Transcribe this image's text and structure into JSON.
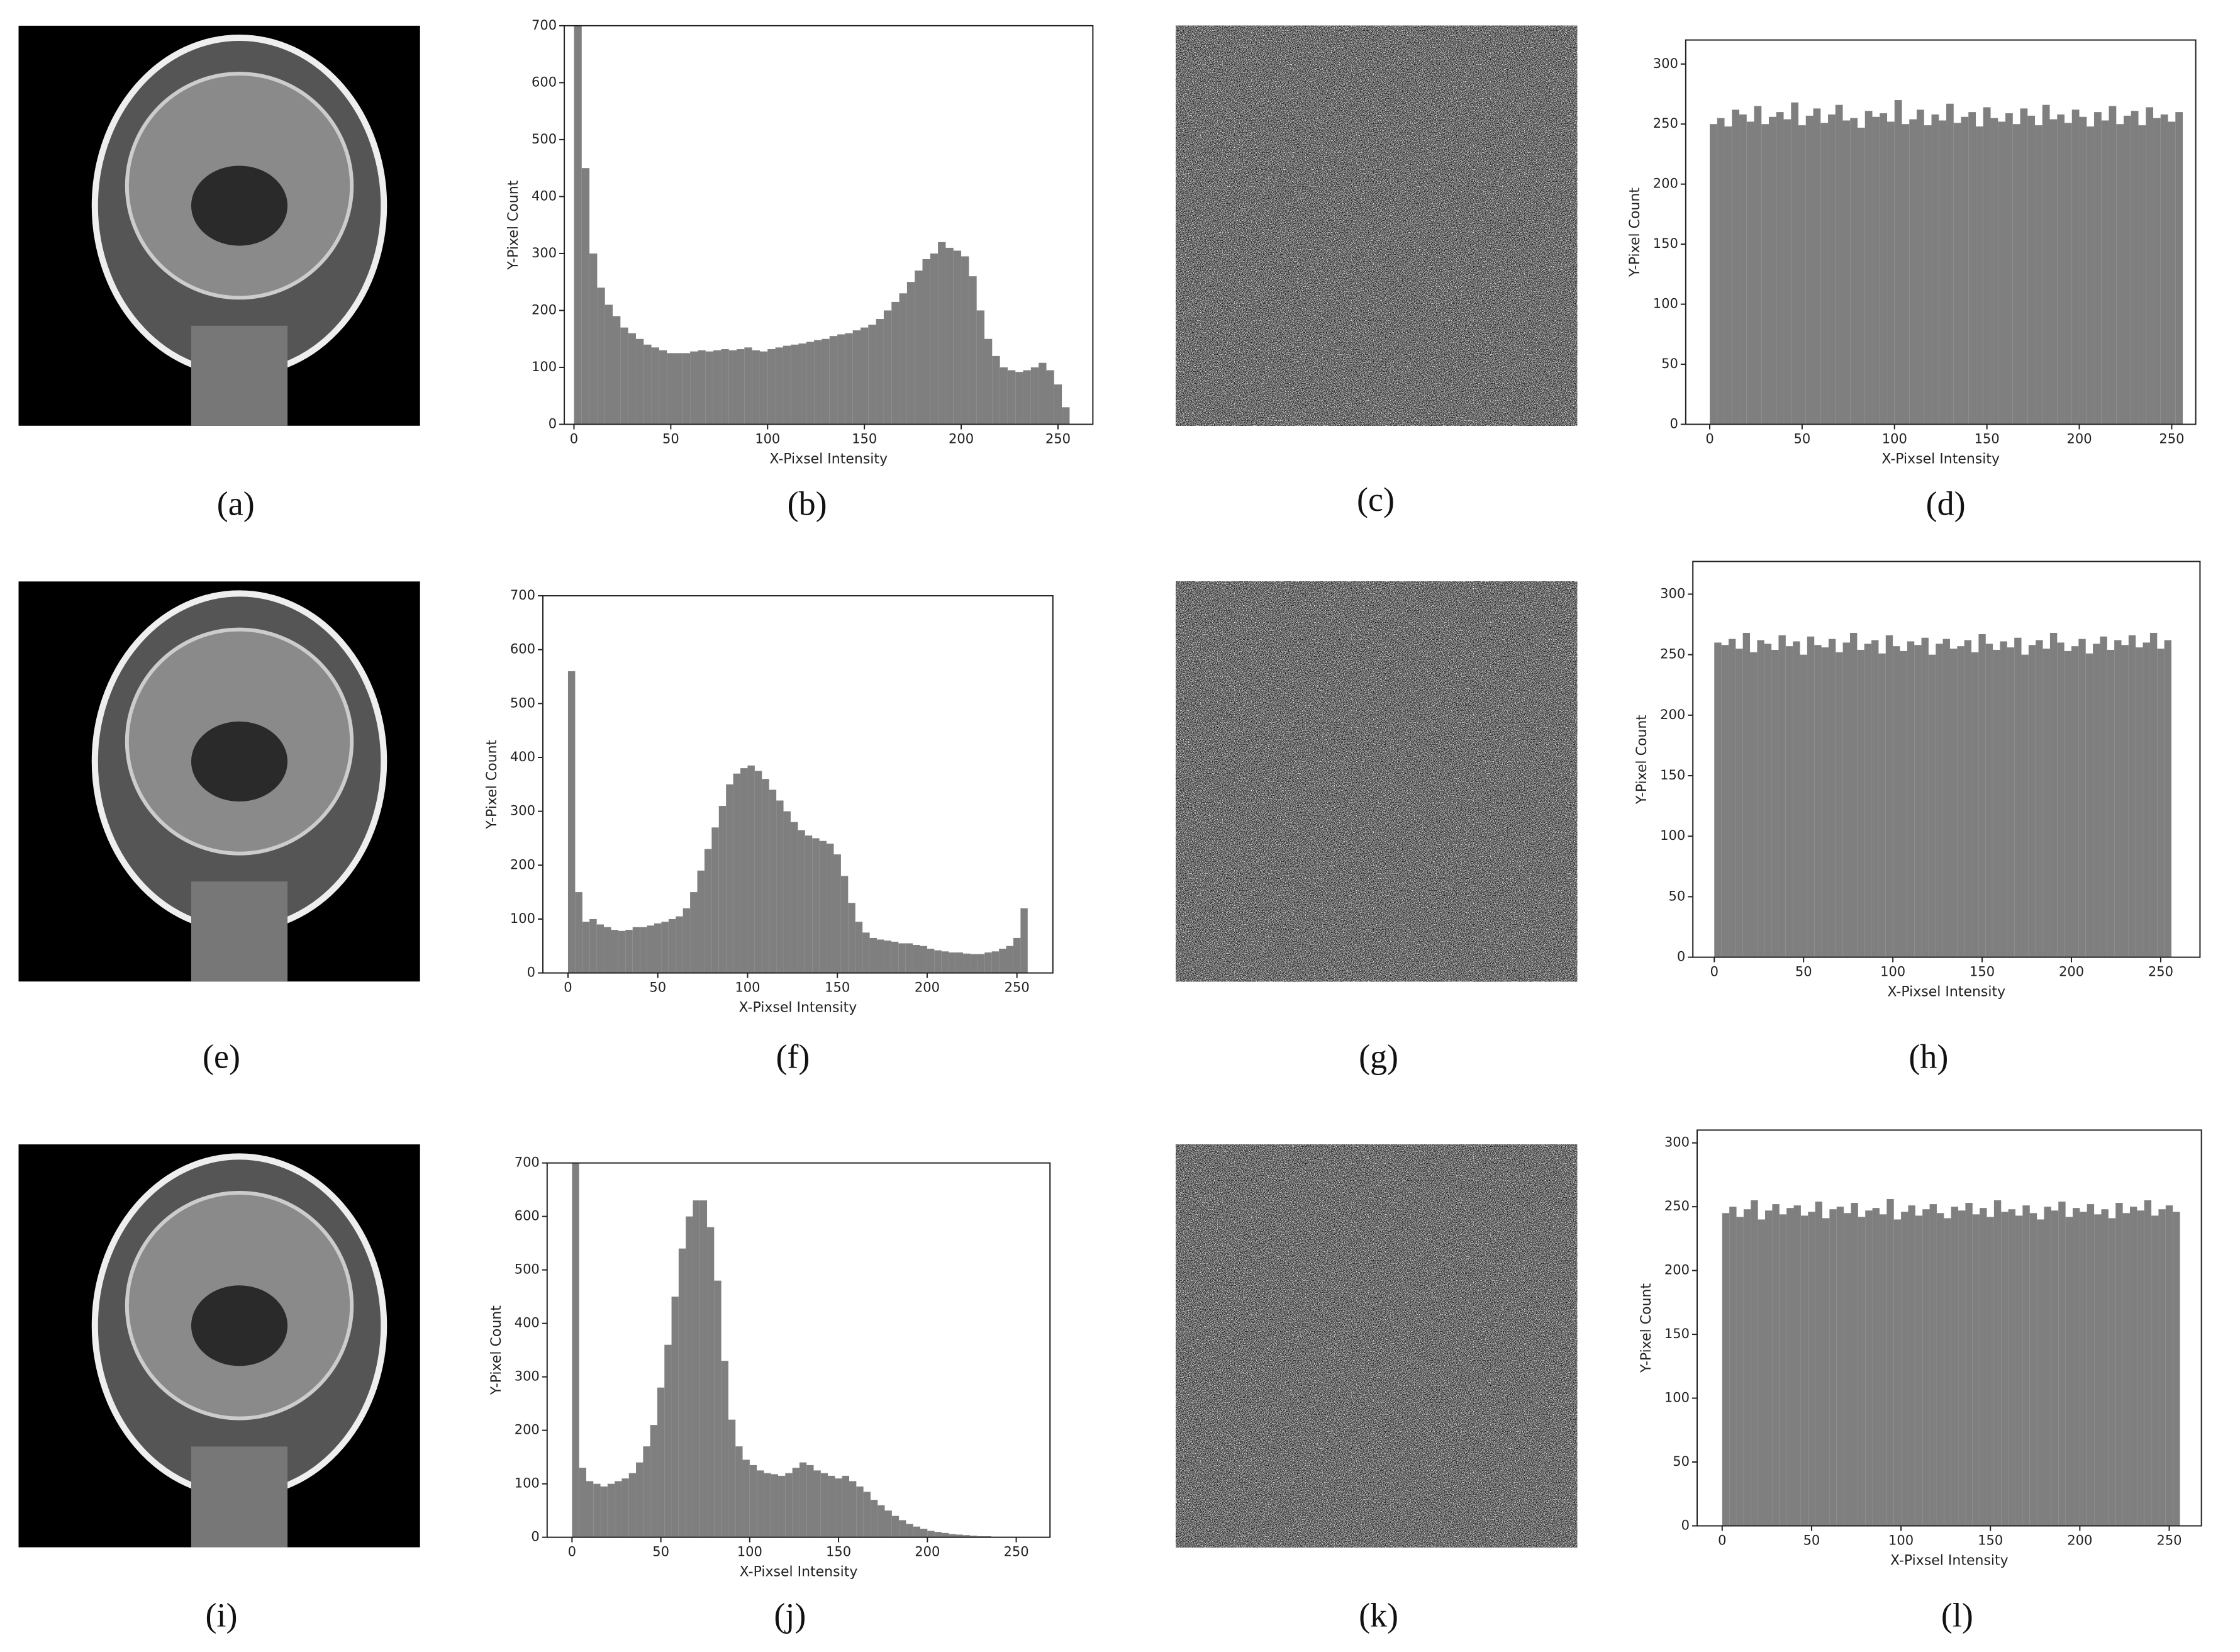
{
  "images": [
    {
      "caption": "(a)"
    },
    {
      "caption": "(c)"
    },
    {
      "caption": "(e)"
    },
    {
      "caption": "(g)"
    },
    {
      "caption": "(i)"
    },
    {
      "caption": "(k)"
    }
  ],
  "chart_data": [
    {
      "type": "histogram",
      "caption": "(b)",
      "xlabel": "X-Pixsel Intensity",
      "ylabel": "Y-Pixel Count",
      "color": "#7f7f7f",
      "bins": [
        0,
        4,
        8,
        12,
        16,
        20,
        24,
        28,
        32,
        36,
        40,
        44,
        48,
        52,
        56,
        60,
        64,
        68,
        72,
        76,
        80,
        84,
        88,
        92,
        96,
        100,
        104,
        108,
        112,
        116,
        120,
        124,
        128,
        132,
        136,
        140,
        144,
        148,
        152,
        156,
        160,
        164,
        168,
        172,
        176,
        180,
        184,
        188,
        192,
        196,
        200,
        204,
        208,
        212,
        216,
        220,
        224,
        228,
        232,
        236,
        240,
        244,
        248,
        252,
        256
      ],
      "values": [
        700,
        450,
        300,
        240,
        210,
        190,
        170,
        160,
        150,
        140,
        135,
        130,
        125,
        125,
        125,
        128,
        130,
        128,
        130,
        132,
        130,
        132,
        135,
        130,
        128,
        132,
        135,
        138,
        140,
        142,
        145,
        148,
        150,
        155,
        158,
        160,
        165,
        170,
        175,
        185,
        200,
        215,
        230,
        250,
        270,
        290,
        300,
        320,
        310,
        305,
        295,
        260,
        200,
        150,
        120,
        100,
        95,
        92,
        95,
        100,
        108,
        95,
        70,
        30
      ],
      "xlim": [
        -5,
        268
      ],
      "ylim": [
        0,
        700
      ],
      "xticks": [
        0,
        50,
        100,
        150,
        200,
        250
      ],
      "yticks": [
        0,
        100,
        200,
        300,
        400,
        500,
        600,
        700
      ]
    },
    {
      "type": "histogram",
      "caption": "(d)",
      "xlabel": "X-Pixsel Intensity",
      "ylabel": "Y-Pixel Count",
      "color": "#7f7f7f",
      "bins": [
        0,
        4,
        8,
        12,
        16,
        20,
        24,
        28,
        32,
        36,
        40,
        44,
        48,
        52,
        56,
        60,
        64,
        68,
        72,
        76,
        80,
        84,
        88,
        92,
        96,
        100,
        104,
        108,
        112,
        116,
        120,
        124,
        128,
        132,
        136,
        140,
        144,
        148,
        152,
        156,
        160,
        164,
        168,
        172,
        176,
        180,
        184,
        188,
        192,
        196,
        200,
        204,
        208,
        212,
        216,
        220,
        224,
        228,
        232,
        236,
        240,
        244,
        248,
        252,
        256
      ],
      "values": [
        250,
        255,
        248,
        262,
        258,
        252,
        265,
        250,
        256,
        260,
        254,
        268,
        249,
        257,
        263,
        251,
        258,
        266,
        253,
        255,
        247,
        261,
        256,
        259,
        252,
        270,
        250,
        254,
        262,
        249,
        258,
        253,
        267,
        251,
        256,
        260,
        248,
        264,
        255,
        252,
        259,
        250,
        263,
        257,
        249,
        266,
        254,
        258,
        251,
        262,
        256,
        248,
        260,
        253,
        265,
        250,
        257,
        261,
        249,
        264,
        255,
        258,
        252,
        260
      ],
      "xlim": [
        -13,
        263
      ],
      "ylim": [
        0,
        320
      ],
      "xticks": [
        0,
        50,
        100,
        150,
        200,
        250
      ],
      "yticks": [
        0,
        50,
        100,
        150,
        200,
        250,
        300
      ]
    },
    {
      "type": "histogram",
      "caption": "(f)",
      "xlabel": "X-Pixsel Intensity",
      "ylabel": "Y-Pixel Count",
      "color": "#7f7f7f",
      "bins": [
        0,
        4,
        8,
        12,
        16,
        20,
        24,
        28,
        32,
        36,
        40,
        44,
        48,
        52,
        56,
        60,
        64,
        68,
        72,
        76,
        80,
        84,
        88,
        92,
        96,
        100,
        104,
        108,
        112,
        116,
        120,
        124,
        128,
        132,
        136,
        140,
        144,
        148,
        152,
        156,
        160,
        164,
        168,
        172,
        176,
        180,
        184,
        188,
        192,
        196,
        200,
        204,
        208,
        212,
        216,
        220,
        224,
        228,
        232,
        236,
        240,
        244,
        248,
        252,
        256
      ],
      "values": [
        560,
        150,
        95,
        100,
        90,
        85,
        80,
        78,
        80,
        85,
        85,
        88,
        92,
        95,
        100,
        105,
        120,
        150,
        190,
        230,
        270,
        310,
        350,
        370,
        380,
        385,
        375,
        360,
        340,
        320,
        300,
        280,
        265,
        255,
        250,
        245,
        240,
        220,
        180,
        130,
        95,
        75,
        65,
        62,
        60,
        58,
        55,
        55,
        52,
        50,
        45,
        42,
        40,
        38,
        38,
        36,
        35,
        35,
        38,
        40,
        45,
        50,
        65,
        120
      ],
      "xlim": [
        -14,
        270
      ],
      "ylim": [
        0,
        700
      ],
      "xticks": [
        0,
        50,
        100,
        150,
        200,
        250
      ],
      "yticks": [
        0,
        100,
        200,
        300,
        400,
        500,
        600,
        700
      ]
    },
    {
      "type": "histogram",
      "caption": "(h)",
      "xlabel": "X-Pixsel Intensity",
      "ylabel": "Y-Pixel Count",
      "color": "#7f7f7f",
      "bins": [
        0,
        4,
        8,
        12,
        16,
        20,
        24,
        28,
        32,
        36,
        40,
        44,
        48,
        52,
        56,
        60,
        64,
        68,
        72,
        76,
        80,
        84,
        88,
        92,
        96,
        100,
        104,
        108,
        112,
        116,
        120,
        124,
        128,
        132,
        136,
        140,
        144,
        148,
        152,
        156,
        160,
        164,
        168,
        172,
        176,
        180,
        184,
        188,
        192,
        196,
        200,
        204,
        208,
        212,
        216,
        220,
        224,
        228,
        232,
        236,
        240,
        244,
        248,
        252,
        256
      ],
      "values": [
        260,
        258,
        263,
        255,
        268,
        252,
        262,
        259,
        254,
        266,
        257,
        261,
        250,
        265,
        258,
        256,
        263,
        252,
        260,
        268,
        254,
        259,
        262,
        251,
        266,
        257,
        253,
        261,
        258,
        264,
        250,
        259,
        263,
        255,
        257,
        262,
        252,
        267,
        259,
        254,
        261,
        256,
        264,
        250,
        258,
        262,
        255,
        268,
        260,
        253,
        257,
        263,
        251,
        259,
        265,
        254,
        262,
        258,
        266,
        256,
        260,
        268,
        255,
        262
      ],
      "xlim": [
        -12,
        272
      ],
      "ylim": [
        0,
        327
      ],
      "xticks": [
        0,
        50,
        100,
        150,
        200,
        250
      ],
      "yticks": [
        0,
        50,
        100,
        150,
        200,
        250,
        300
      ]
    },
    {
      "type": "histogram",
      "caption": "(j)",
      "xlabel": "X-Pixsel Intensity",
      "ylabel": "Y-Pixel Count",
      "color": "#7f7f7f",
      "bins": [
        0,
        4,
        8,
        12,
        16,
        20,
        24,
        28,
        32,
        36,
        40,
        44,
        48,
        52,
        56,
        60,
        64,
        68,
        72,
        76,
        80,
        84,
        88,
        92,
        96,
        100,
        104,
        108,
        112,
        116,
        120,
        124,
        128,
        132,
        136,
        140,
        144,
        148,
        152,
        156,
        160,
        164,
        168,
        172,
        176,
        180,
        184,
        188,
        192,
        196,
        200,
        204,
        208,
        212,
        216,
        220,
        224,
        228,
        232,
        236,
        240,
        244,
        248,
        252,
        256
      ],
      "values": [
        700,
        130,
        105,
        100,
        95,
        100,
        105,
        110,
        120,
        140,
        170,
        210,
        280,
        360,
        450,
        540,
        600,
        630,
        630,
        580,
        480,
        330,
        220,
        170,
        145,
        135,
        125,
        120,
        118,
        115,
        120,
        130,
        140,
        135,
        125,
        120,
        115,
        110,
        115,
        105,
        95,
        85,
        70,
        60,
        50,
        40,
        32,
        25,
        20,
        16,
        12,
        10,
        8,
        6,
        5,
        4,
        3,
        2,
        2,
        1,
        1,
        1,
        0,
        0
      ],
      "xlim": [
        -14,
        269
      ],
      "ylim": [
        0,
        700
      ],
      "xticks": [
        0,
        50,
        100,
        150,
        200,
        250
      ],
      "yticks": [
        0,
        100,
        200,
        300,
        400,
        500,
        600,
        700
      ]
    },
    {
      "type": "histogram",
      "caption": "(l)",
      "xlabel": "X-Pixsel Intensity",
      "ylabel": "Y-Pixel Count",
      "color": "#7f7f7f",
      "bins": [
        0,
        4,
        8,
        12,
        16,
        20,
        24,
        28,
        32,
        36,
        40,
        44,
        48,
        52,
        56,
        60,
        64,
        68,
        72,
        76,
        80,
        84,
        88,
        92,
        96,
        100,
        104,
        108,
        112,
        116,
        120,
        124,
        128,
        132,
        136,
        140,
        144,
        148,
        152,
        156,
        160,
        164,
        168,
        172,
        176,
        180,
        184,
        188,
        192,
        196,
        200,
        204,
        208,
        212,
        216,
        220,
        224,
        228,
        232,
        236,
        240,
        244,
        248,
        252,
        256
      ],
      "values": [
        245,
        250,
        242,
        248,
        255,
        240,
        247,
        252,
        244,
        249,
        251,
        243,
        246,
        254,
        241,
        248,
        250,
        245,
        253,
        242,
        247,
        249,
        244,
        256,
        240,
        246,
        251,
        243,
        248,
        252,
        245,
        241,
        250,
        247,
        253,
        244,
        249,
        242,
        255,
        246,
        248,
        243,
        251,
        245,
        240,
        250,
        247,
        254,
        242,
        249,
        246,
        252,
        244,
        248,
        241,
        253,
        245,
        250,
        247,
        255,
        243,
        248,
        251,
        246
      ],
      "xlim": [
        -14,
        268
      ],
      "ylim": [
        0,
        310
      ],
      "xticks": [
        0,
        50,
        100,
        150,
        200,
        250
      ],
      "yticks": [
        0,
        50,
        100,
        150,
        200,
        250,
        300
      ]
    }
  ]
}
